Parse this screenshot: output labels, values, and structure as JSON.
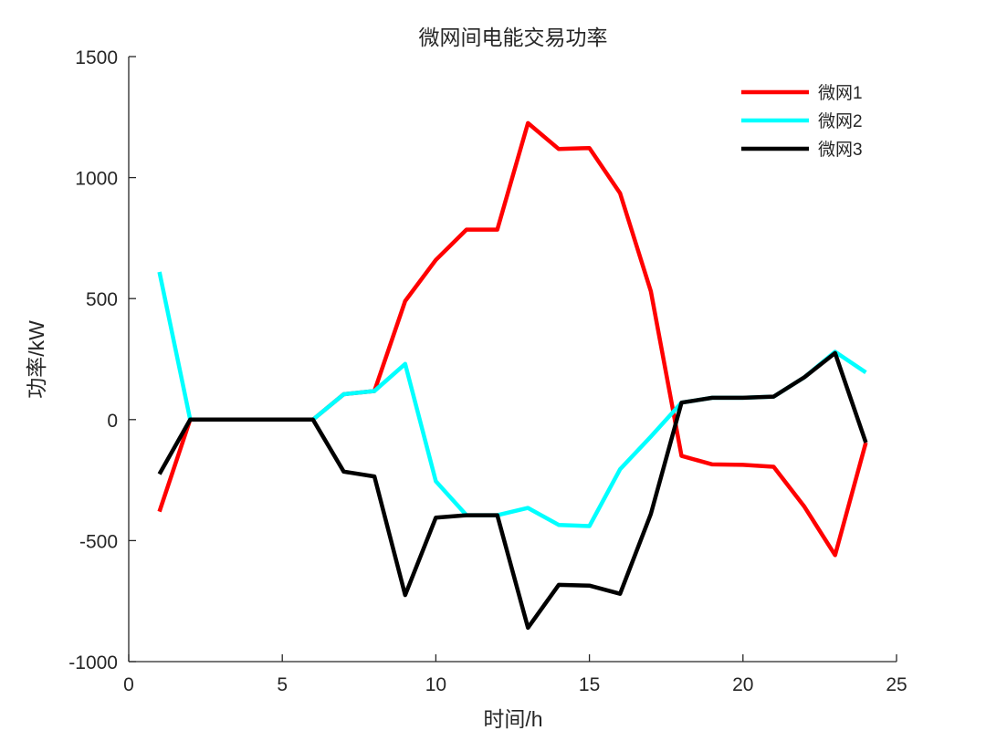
{
  "chart_data": {
    "type": "line",
    "title": "微网间电能交易功率",
    "xlabel": "时间/h",
    "ylabel": "功率/kW",
    "xlim": [
      0,
      25
    ],
    "ylim": [
      -1000,
      1500
    ],
    "xticks": [
      0,
      5,
      10,
      15,
      20,
      25
    ],
    "yticks": [
      -1000,
      -500,
      0,
      500,
      1000,
      1500
    ],
    "xtick_labels": [
      "0",
      "5",
      "10",
      "15",
      "20",
      "25"
    ],
    "ytick_labels": [
      "-1000",
      "-500",
      "0",
      "500",
      "1000",
      "1500"
    ],
    "grid": false,
    "legend_position": "top-right",
    "x": [
      1,
      2,
      3,
      4,
      5,
      6,
      7,
      8,
      9,
      10,
      11,
      12,
      13,
      14,
      15,
      16,
      17,
      18,
      19,
      20,
      21,
      22,
      23,
      24
    ],
    "series": [
      {
        "name": "微网1",
        "color": "#ff0000",
        "values": [
          -380,
          0,
          0,
          0,
          0,
          0,
          105,
          118,
          490,
          660,
          785,
          785,
          1225,
          1118,
          1122,
          935,
          530,
          -150,
          -185,
          -187,
          -195,
          -360,
          -560,
          -95
        ]
      },
      {
        "name": "微网2",
        "color": "#00ffff",
        "values": [
          610,
          0,
          0,
          0,
          0,
          0,
          105,
          118,
          230,
          -255,
          -395,
          -395,
          -365,
          -435,
          -440,
          -205,
          -70,
          70,
          90,
          90,
          95,
          175,
          280,
          195
        ]
      },
      {
        "name": "微网3",
        "color": "#000000",
        "values": [
          -225,
          0,
          0,
          0,
          0,
          0,
          -215,
          -235,
          -725,
          -405,
          -395,
          -395,
          -860,
          -683,
          -686,
          -720,
          -390,
          70,
          90,
          90,
          95,
          175,
          275,
          -95
        ]
      }
    ]
  }
}
